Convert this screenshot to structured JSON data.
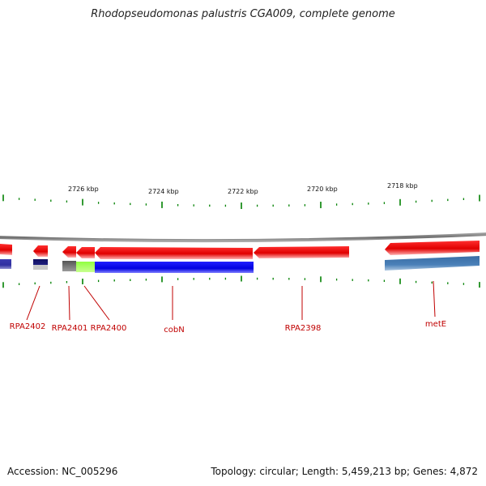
{
  "title": "Rhodopseudomonas palustris CGA009, complete genome",
  "accession": "Accession: NC_005296",
  "topology": "Topology: circular; Length: 5,459,213 bp; Genes: 4,872",
  "colors": {
    "backbone": "#808080",
    "forward_gene": "#ff0000",
    "reverse_cds": "#0000ff",
    "tick": "#008000",
    "label": "#c00000"
  },
  "scale": {
    "labels": [
      "2726 kbp",
      "2724 kbp",
      "2722 kbp",
      "2720 kbp",
      "2718 kbp"
    ]
  },
  "genes": [
    {
      "name": "RPA2402",
      "label": "RPA2402"
    },
    {
      "name": "RPA2401",
      "label": "RPA2401"
    },
    {
      "name": "RPA2400",
      "label": "RPA2400"
    },
    {
      "name": "cobN",
      "label": "cobN"
    },
    {
      "name": "RPA2398",
      "label": "RPA2398"
    },
    {
      "name": "metE",
      "label": "metE"
    }
  ]
}
